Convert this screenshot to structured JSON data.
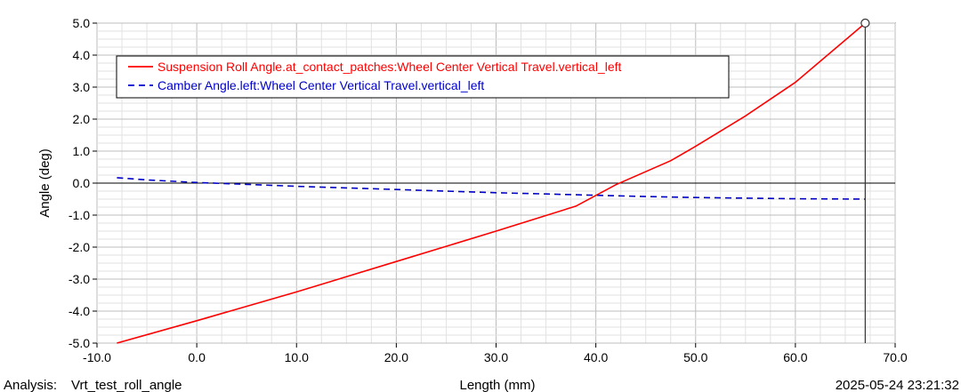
{
  "footer": {
    "analysis_label": "Analysis:",
    "analysis_value": "Vrt_test_roll_angle",
    "timestamp": "2025-05-24 23:21:32"
  },
  "chart_data": {
    "type": "line",
    "xlabel": "Length (mm)",
    "ylabel": "Angle (deg)",
    "xlim": [
      -10.0,
      70.0
    ],
    "ylim": [
      -5.0,
      5.0
    ],
    "x_ticks": [
      "-10.0",
      "0.0",
      "10.0",
      "20.0",
      "30.0",
      "40.0",
      "50.0",
      "60.0",
      "70.0"
    ],
    "y_ticks": [
      "5.0",
      "4.0",
      "3.0",
      "2.0",
      "1.0",
      "0.0",
      "-1.0",
      "-2.0",
      "-3.0",
      "-4.0",
      "-5.0"
    ],
    "grid": true,
    "legend_position": "top-left",
    "cursor_x": 67.0,
    "series": [
      {
        "name": "Suspension Roll Angle.at_contact_patches:Wheel Center Vertical Travel.vertical_left",
        "color": "#ff0000",
        "style": "solid",
        "x": [
          -8.0,
          0.0,
          10.0,
          20.0,
          30.0,
          38.0,
          42.0,
          47.5,
          50.0,
          55.0,
          60.0,
          67.0
        ],
        "y": [
          -5.0,
          -4.3,
          -3.4,
          -2.45,
          -1.5,
          -0.72,
          -0.05,
          0.7,
          1.15,
          2.1,
          3.15,
          5.0
        ]
      },
      {
        "name": "Camber Angle.left:Wheel Center Vertical Travel.vertical_left",
        "color": "#0000cc",
        "style": "dashed",
        "x": [
          -8.0,
          -5.0,
          0.0,
          5.0,
          10.0,
          15.0,
          20.0,
          25.0,
          30.0,
          35.0,
          40.0,
          45.0,
          50.0,
          55.0,
          60.0,
          67.0
        ],
        "y": [
          0.17,
          0.1,
          0.02,
          -0.04,
          -0.1,
          -0.15,
          -0.2,
          -0.25,
          -0.3,
          -0.34,
          -0.38,
          -0.42,
          -0.45,
          -0.47,
          -0.49,
          -0.5
        ]
      }
    ]
  }
}
